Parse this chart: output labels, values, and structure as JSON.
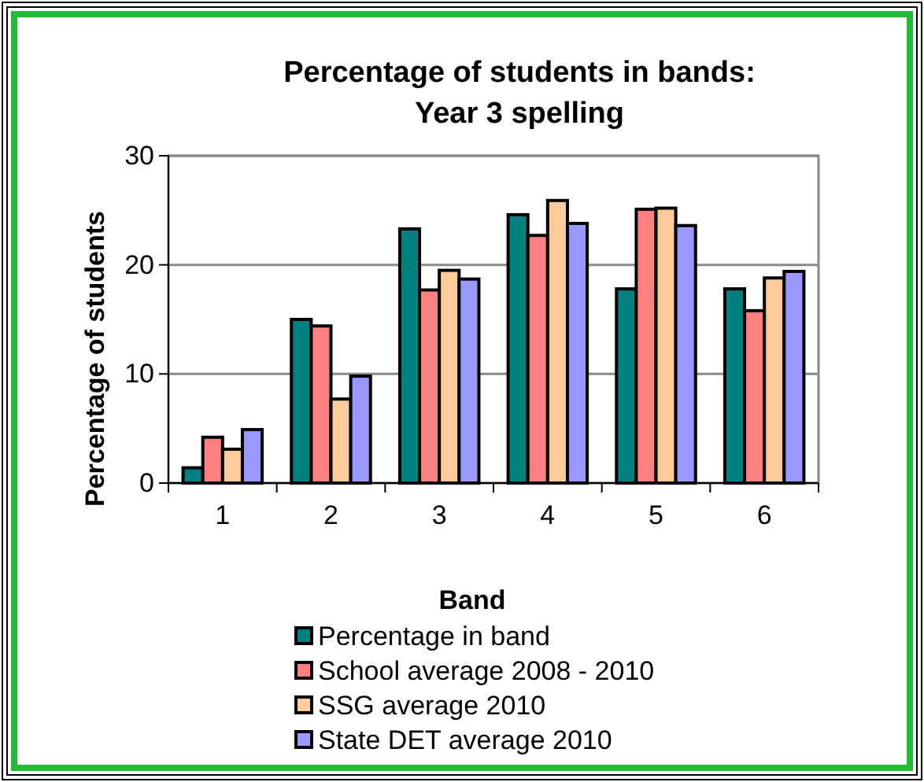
{
  "chart_data": {
    "type": "bar",
    "title": "Percentage of students in bands: Year 3 spelling",
    "xlabel": "Band",
    "ylabel": "Percentage of students",
    "categories": [
      "1",
      "2",
      "3",
      "4",
      "5",
      "6"
    ],
    "series": [
      {
        "name": "Percentage in band",
        "color": "#008080",
        "values": [
          1.4,
          15.0,
          23.3,
          24.6,
          17.8,
          17.8
        ]
      },
      {
        "name": "School average 2008 - 2010",
        "color": "#ff8080",
        "values": [
          4.2,
          14.4,
          17.7,
          22.7,
          25.1,
          15.8
        ]
      },
      {
        "name": "SSG average 2010",
        "color": "#ffcc99",
        "values": [
          3.1,
          7.7,
          19.5,
          25.9,
          25.2,
          18.8
        ]
      },
      {
        "name": "State DET average 2010",
        "color": "#9999ff",
        "values": [
          4.9,
          9.8,
          18.7,
          23.8,
          23.6,
          19.4
        ]
      }
    ],
    "ylim": [
      0,
      30
    ],
    "yticks": [
      0,
      10,
      20,
      30
    ],
    "grid": "y",
    "legend": "bottom"
  }
}
